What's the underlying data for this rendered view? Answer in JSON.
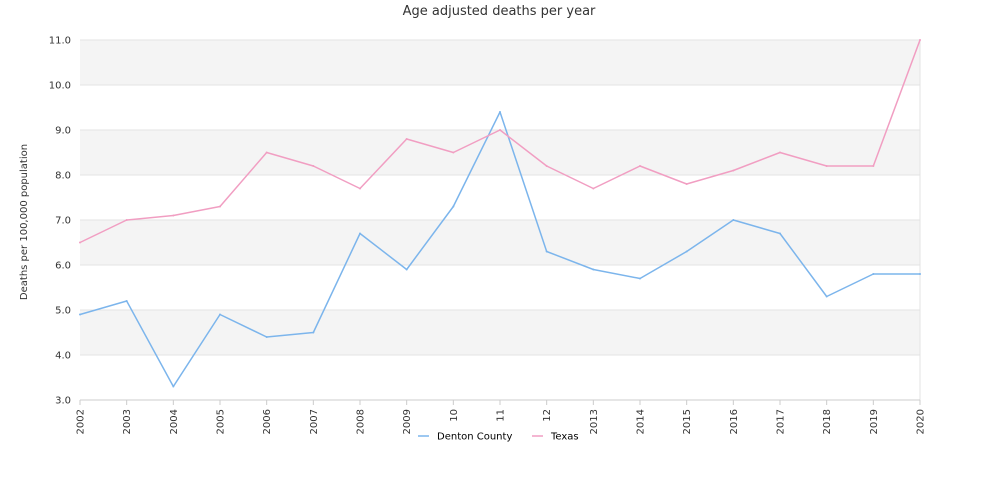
{
  "chart_data": {
    "type": "line",
    "title": "Age adjusted deaths per year",
    "xlabel": "",
    "ylabel": "Deaths per 100,000 population",
    "x": [
      "2002",
      "2003",
      "2004",
      "2005",
      "2006",
      "2007",
      "2008",
      "2009",
      "10",
      "11",
      "12",
      "2013",
      "2014",
      "2015",
      "2016",
      "2017",
      "2018",
      "2019",
      "2020"
    ],
    "ylim": [
      3.0,
      11.0
    ],
    "yticks": [
      "3.0",
      "4.0",
      "5.0",
      "6.0",
      "7.0",
      "8.0",
      "9.0",
      "10.0",
      "11.0"
    ],
    "grid": "horizontal alternating bands",
    "legend_position": "bottom-center",
    "series": [
      {
        "name": "Denton County",
        "color": "#7cb5ec",
        "values": [
          4.9,
          5.2,
          3.3,
          4.9,
          4.4,
          4.5,
          6.7,
          5.9,
          7.3,
          9.4,
          6.3,
          5.9,
          5.7,
          6.3,
          7.0,
          6.7,
          5.3,
          5.8,
          5.8
        ]
      },
      {
        "name": "Texas",
        "color": "#f19ec2",
        "values": [
          6.5,
          7.0,
          7.1,
          7.3,
          8.5,
          8.2,
          7.7,
          8.8,
          8.5,
          9.0,
          8.2,
          7.7,
          8.2,
          7.8,
          8.1,
          8.5,
          8.2,
          8.2,
          11.0
        ]
      }
    ]
  }
}
